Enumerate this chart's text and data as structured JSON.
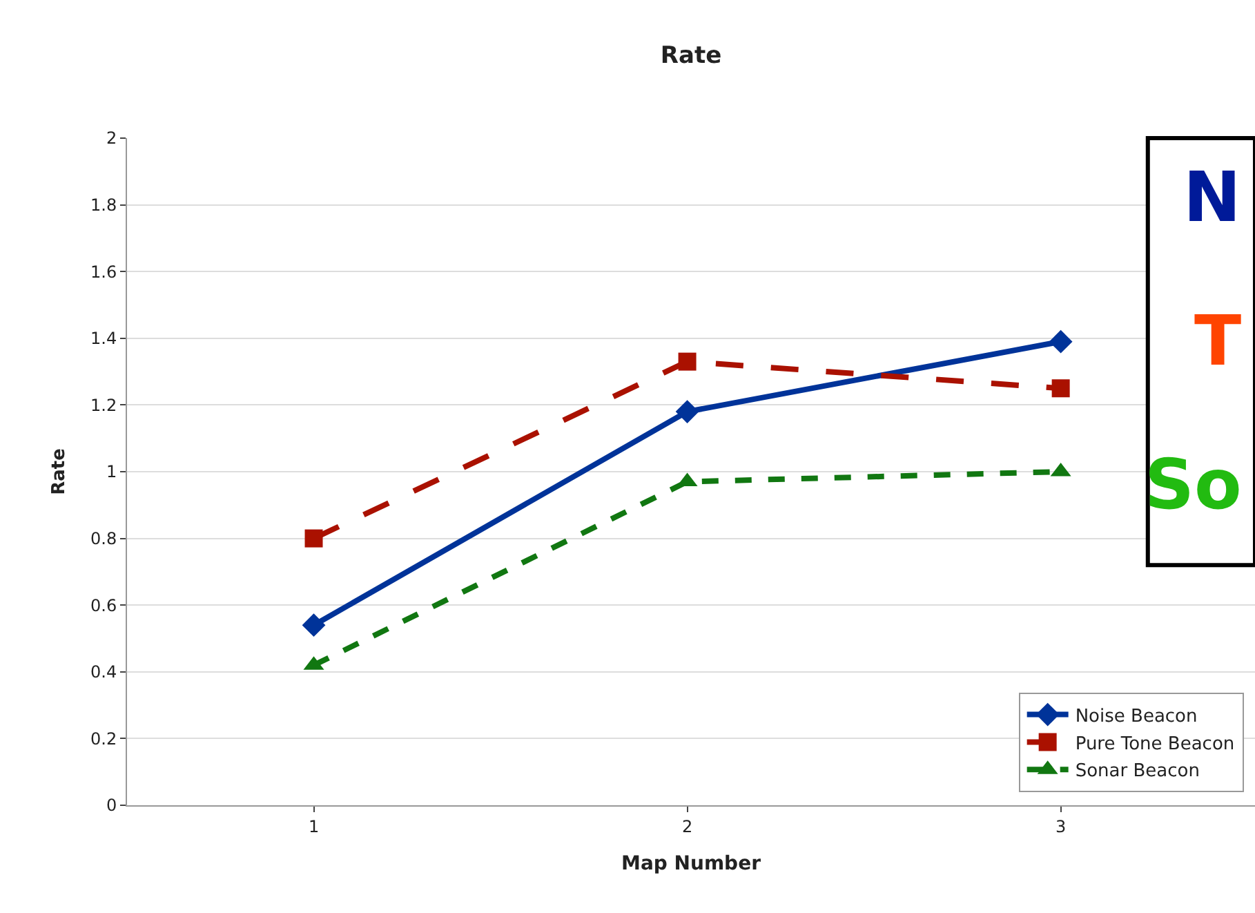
{
  "chart_data": {
    "type": "line",
    "title": "Rate",
    "xlabel": "Map Number",
    "ylabel": "Rate",
    "categories": [
      "1",
      "2",
      "3"
    ],
    "series": [
      {
        "name": "Noise Beacon",
        "color": "#003399",
        "values": [
          0.54,
          1.18,
          1.39
        ],
        "marker": "diamond",
        "line_style": "solid"
      },
      {
        "name": "Pure Tone Beacon",
        "color": "#aa1100",
        "values": [
          0.8,
          1.33,
          1.25
        ],
        "marker": "square",
        "line_style": "dashed"
      },
      {
        "name": "Sonar Beacon",
        "color": "#117711",
        "values": [
          0.42,
          0.97,
          1.0
        ],
        "marker": "triangle",
        "line_style": "dotted"
      }
    ],
    "ylim": [
      0,
      2
    ],
    "yticks": [
      0,
      0.2,
      0.4,
      0.6,
      0.8,
      1,
      1.2,
      1.4,
      1.6,
      1.8,
      2
    ],
    "grid": "y",
    "legend": "bottom right",
    "annotations": [
      "N",
      "T",
      "So"
    ]
  }
}
